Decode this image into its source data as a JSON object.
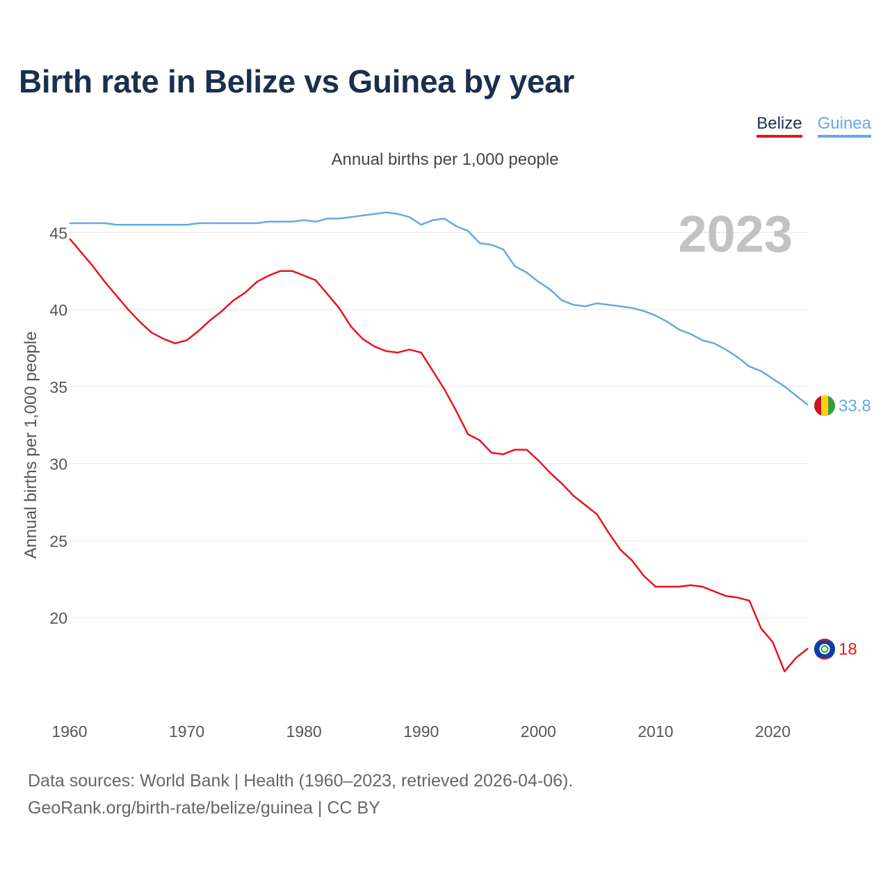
{
  "title": "Birth rate in Belize vs Guinea by year",
  "legend": [
    {
      "name": "Belize",
      "color": "#e8141c"
    },
    {
      "name": "Guinea",
      "color": "#66a8e8"
    }
  ],
  "subtitle": "Annual births per 1,000 people",
  "year_label": "2023",
  "footer": {
    "line1": "Data sources: World Bank | Health (1960–2023, retrieved 2026-04-06).",
    "line2": "GeoRank.org/birth-rate/belize/guinea | CC BY"
  },
  "chart_data": {
    "type": "line",
    "title": "Birth rate in Belize vs Guinea by year",
    "subtitle": "Annual births per 1,000 people",
    "xlabel": "",
    "ylabel": "Annual births per 1,000 people",
    "xlim": [
      1960,
      2023
    ],
    "ylim": [
      14.5,
      47
    ],
    "xticks": [
      1960,
      1970,
      1980,
      1990,
      2000,
      2010,
      2020
    ],
    "yticks": [
      20,
      25,
      30,
      35,
      40,
      45
    ],
    "grid": true,
    "legend_position": "top-right",
    "x": [
      1960,
      1961,
      1962,
      1963,
      1964,
      1965,
      1966,
      1967,
      1968,
      1969,
      1970,
      1971,
      1972,
      1973,
      1974,
      1975,
      1976,
      1977,
      1978,
      1979,
      1980,
      1981,
      1982,
      1983,
      1984,
      1985,
      1986,
      1987,
      1988,
      1989,
      1990,
      1991,
      1992,
      1993,
      1994,
      1995,
      1996,
      1997,
      1998,
      1999,
      2000,
      2001,
      2002,
      2003,
      2004,
      2005,
      2006,
      2007,
      2008,
      2009,
      2010,
      2011,
      2012,
      2013,
      2014,
      2015,
      2016,
      2017,
      2018,
      2019,
      2020,
      2021,
      2022,
      2023
    ],
    "series": [
      {
        "name": "Belize",
        "color": "#e8141c",
        "end_label": "18",
        "values": [
          44.6,
          43.7,
          42.8,
          41.8,
          40.9,
          40.0,
          39.2,
          38.5,
          38.1,
          37.8,
          38.0,
          38.6,
          39.3,
          39.9,
          40.6,
          41.1,
          41.8,
          42.2,
          42.5,
          42.5,
          42.2,
          41.9,
          41.0,
          40.1,
          38.9,
          38.1,
          37.6,
          37.3,
          37.2,
          37.4,
          37.2,
          36.0,
          34.8,
          33.4,
          31.9,
          31.5,
          30.7,
          30.6,
          30.9,
          30.9,
          30.2,
          29.4,
          28.7,
          27.9,
          27.3,
          26.7,
          25.5,
          24.4,
          23.7,
          22.7,
          22.0,
          22.0,
          22.0,
          22.1,
          22.0,
          21.7,
          21.4,
          21.3,
          21.1,
          19.3,
          18.4,
          16.5,
          17.4,
          18.0
        ]
      },
      {
        "name": "Guinea",
        "color": "#66a8e8",
        "end_label": "33.8",
        "values": [
          45.6,
          45.6,
          45.6,
          45.6,
          45.5,
          45.5,
          45.5,
          45.5,
          45.5,
          45.5,
          45.5,
          45.6,
          45.6,
          45.6,
          45.6,
          45.6,
          45.6,
          45.7,
          45.7,
          45.7,
          45.8,
          45.7,
          45.9,
          45.9,
          46.0,
          46.1,
          46.2,
          46.3,
          46.2,
          46.0,
          45.5,
          45.8,
          45.9,
          45.4,
          45.1,
          44.3,
          44.2,
          43.9,
          42.8,
          42.4,
          41.8,
          41.3,
          40.6,
          40.3,
          40.2,
          40.4,
          40.3,
          40.2,
          40.1,
          39.9,
          39.6,
          39.2,
          38.7,
          38.4,
          38.0,
          37.8,
          37.4,
          36.9,
          36.3,
          36.0,
          35.5,
          35.0,
          34.4,
          33.8
        ]
      }
    ]
  }
}
